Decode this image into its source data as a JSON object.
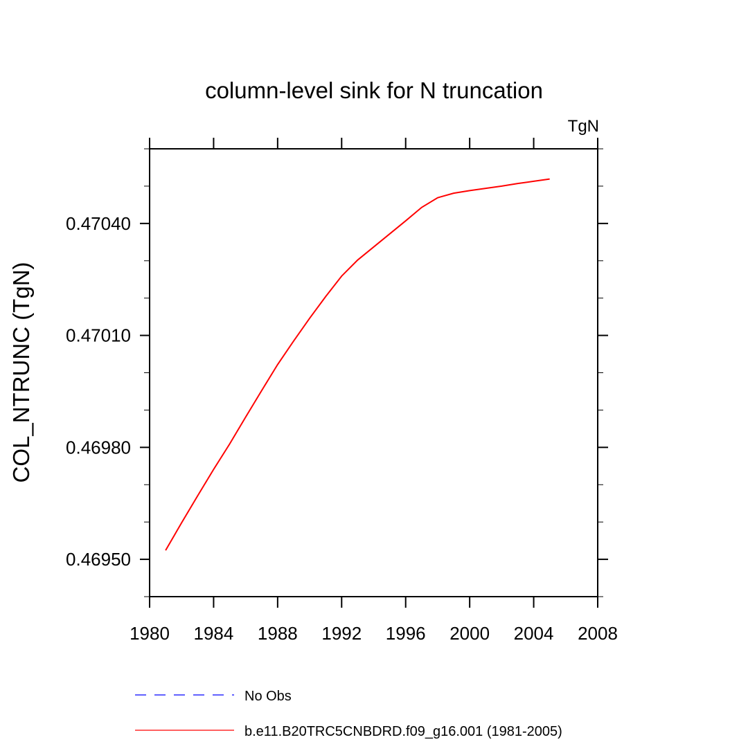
{
  "chart_data": {
    "type": "line",
    "title": "column-level sink for N truncation",
    "units_label": "TgN",
    "ylabel": "COL_NTRUNC  (TgN)",
    "x": [
      1981,
      1982,
      1983,
      1984,
      1985,
      1986,
      1987,
      1988,
      1989,
      1990,
      1991,
      1992,
      1993,
      1994,
      1995,
      1996,
      1997,
      1998,
      1999,
      2000,
      2001,
      2002,
      2003,
      2004,
      2005
    ],
    "series": [
      {
        "name": "No Obs",
        "color": "#0000ff",
        "dashed": true,
        "values": [
          null,
          null,
          null,
          null,
          null,
          null,
          null,
          null,
          null,
          null,
          null,
          null,
          null,
          null,
          null,
          null,
          null,
          null,
          null,
          null,
          null,
          null,
          null,
          null,
          null
        ]
      },
      {
        "name": "b.e11.B20TRC5CNBDRD.f09_g16.001 (1981-2005)",
        "color": "#ff0000",
        "dashed": false,
        "values": [
          0.469524,
          0.469598,
          0.46967,
          0.469741,
          0.469809,
          0.469881,
          0.469952,
          0.470022,
          0.470085,
          0.470146,
          0.470204,
          0.470259,
          0.470302,
          0.470337,
          0.470372,
          0.470407,
          0.470443,
          0.470469,
          0.470481,
          0.470488,
          0.470494,
          0.4705,
          0.470507,
          0.470513,
          0.470519
        ]
      }
    ],
    "xlim": [
      1980,
      2008
    ],
    "xticks": [
      1980,
      1984,
      1988,
      1992,
      1996,
      2000,
      2004,
      2008
    ],
    "ylim": [
      0.4694,
      0.4706
    ],
    "yticks": [
      {
        "value": 0.4695,
        "label": "0.46950"
      },
      {
        "value": 0.4698,
        "label": "0.46980"
      },
      {
        "value": 0.4701,
        "label": "0.47010"
      },
      {
        "value": 0.4704,
        "label": "0.47040"
      }
    ],
    "yminorticks": [
      0.4694,
      0.4696,
      0.4697,
      0.4699,
      0.47,
      0.4702,
      0.4703,
      0.4705,
      0.4706
    ],
    "grid": false
  }
}
